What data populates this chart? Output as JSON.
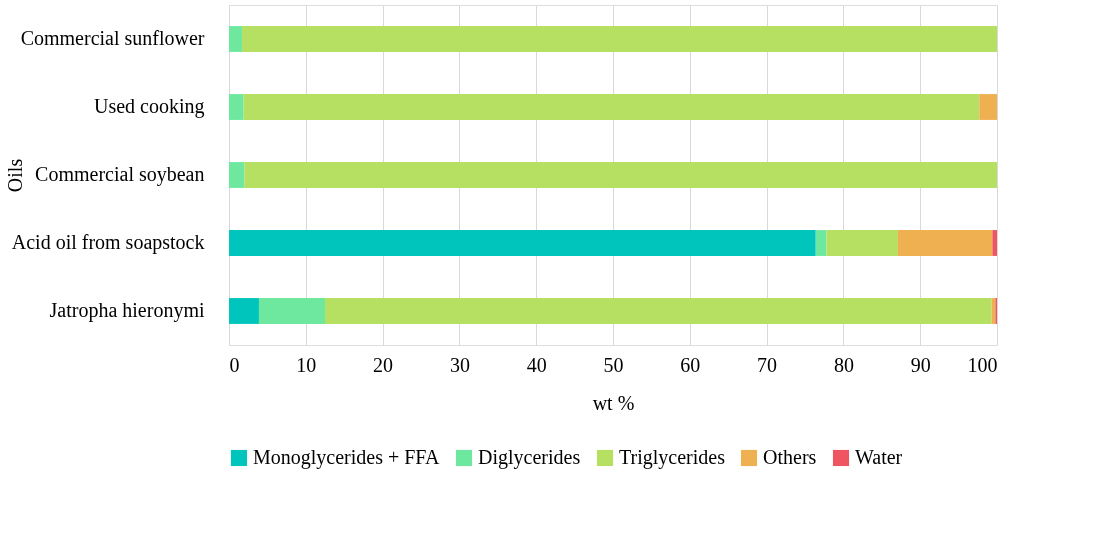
{
  "chart_data": {
    "type": "bar",
    "orientation": "horizontal",
    "stacked": true,
    "categories": [
      "Commercial sunflower",
      "Used cooking",
      "Commercial soybean",
      "Acid oil from soapstock",
      "Jatropha hieronymi"
    ],
    "series": [
      {
        "name": "Monoglycerides + FFA",
        "color": "#00c5bd",
        "values": [
          null,
          null,
          null,
          76.4,
          3.9
        ]
      },
      {
        "name": "Diglycerides",
        "color": "#6de89e",
        "values": [
          1.7,
          1.9,
          2.0,
          1.4,
          8.6
        ]
      },
      {
        "name": "Triglycerides",
        "color": "#b5e061",
        "values": [
          98.3,
          95.8,
          98.0,
          9.3,
          86.8
        ]
      },
      {
        "name": "Others",
        "color": "#eeb050",
        "values": [
          null,
          2.3,
          null,
          12.3,
          0.5
        ]
      },
      {
        "name": "Water",
        "color": "#ef5560",
        "values": [
          null,
          null,
          null,
          0.6,
          0.2
        ]
      }
    ],
    "xlim": [
      0,
      100
    ],
    "xticks": [
      0,
      10,
      20,
      30,
      40,
      50,
      60,
      70,
      80,
      90,
      100
    ],
    "xlabel": "wt %",
    "ylabel": "Oils",
    "grid": "x",
    "legend": "bottom"
  }
}
